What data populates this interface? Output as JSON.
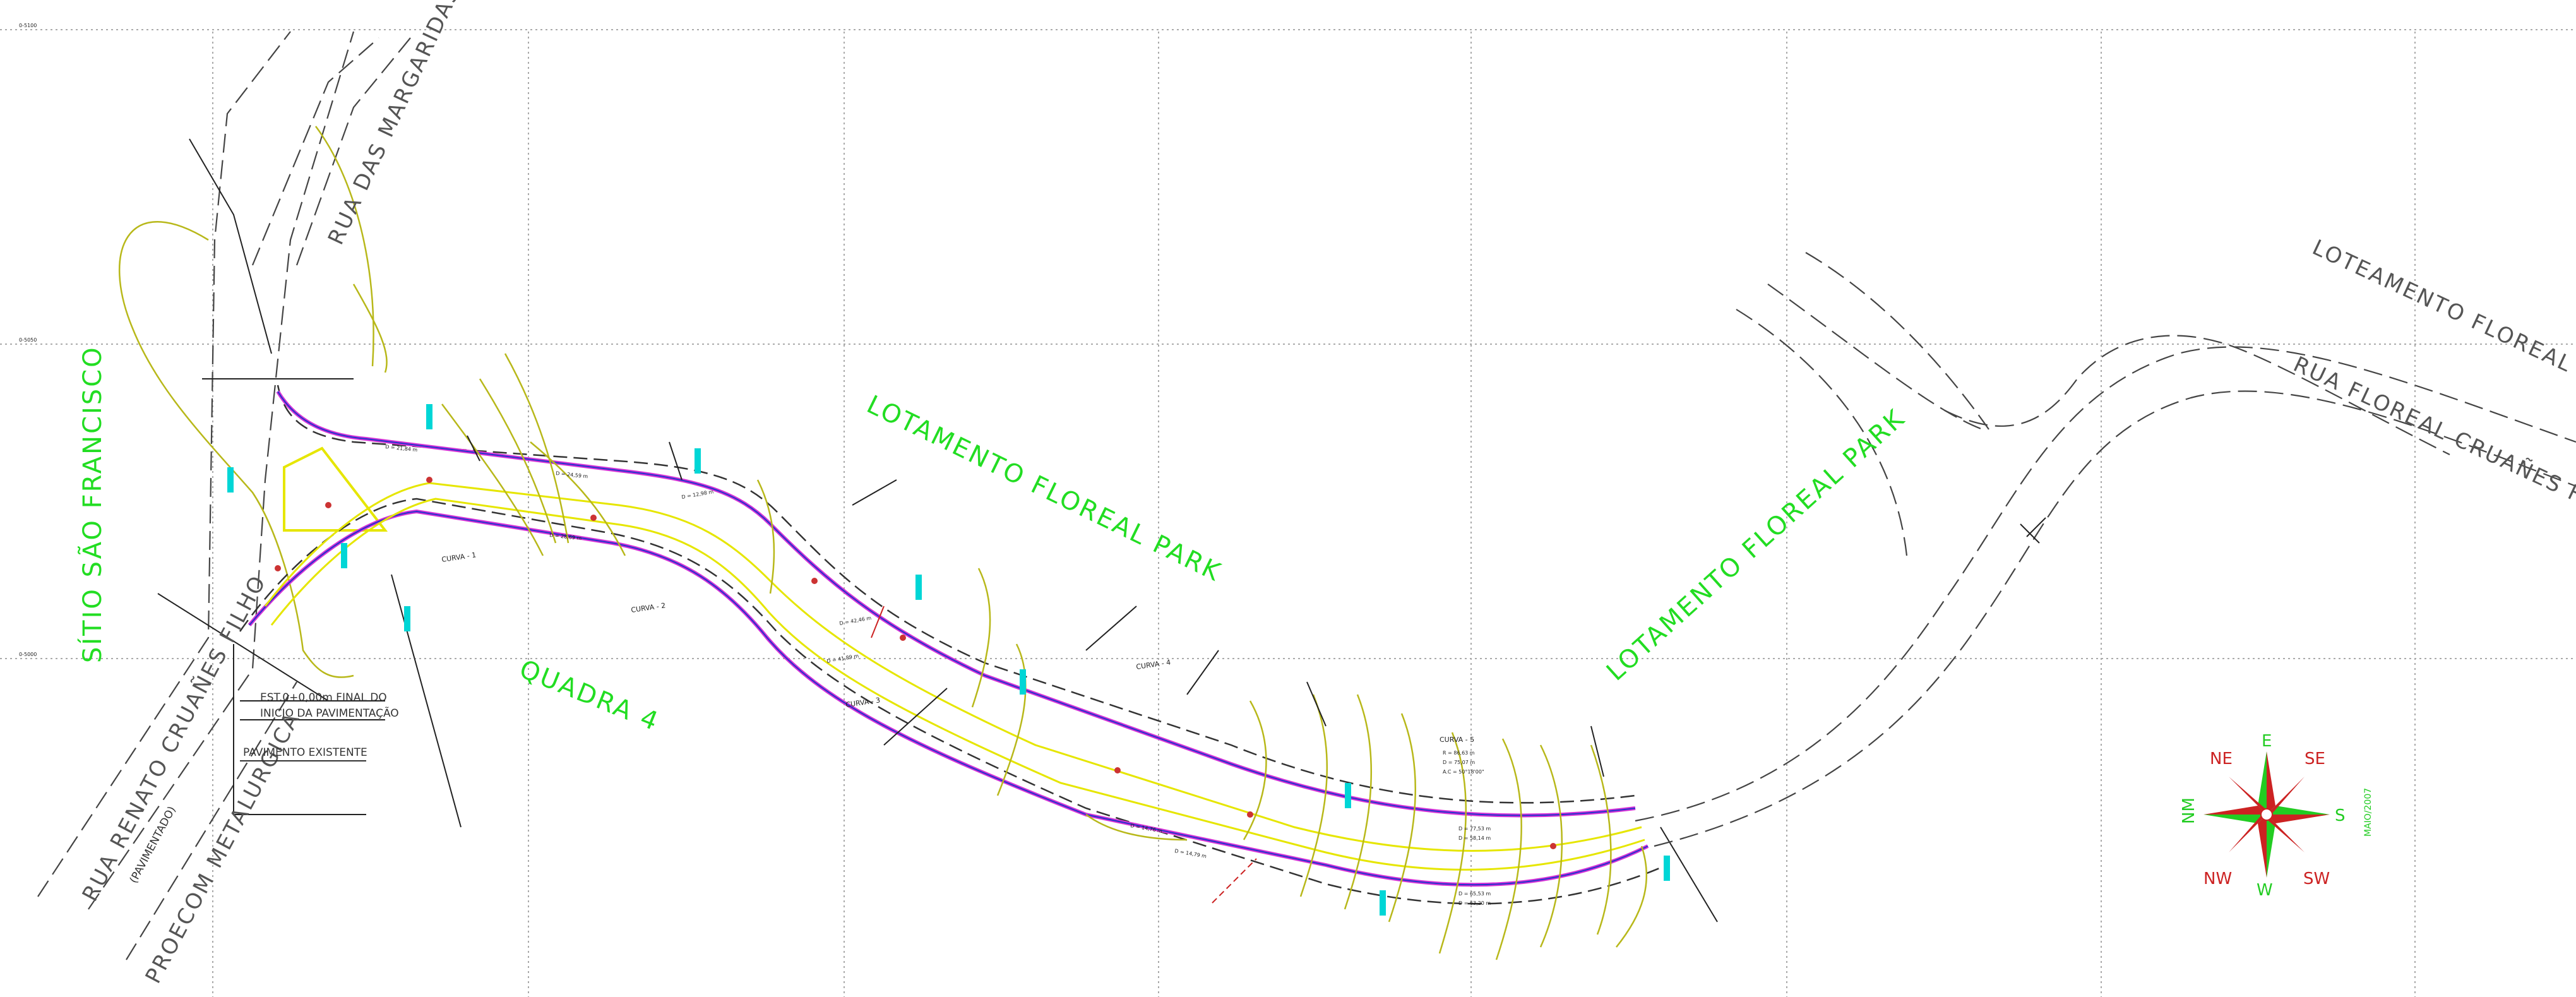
{
  "drawing": {
    "labels": {
      "sitio": "SÍTIO SÃO FRANCISCO",
      "rua_margaridas": "RUA DAS MARGARIDAS",
      "lotamento_floreal_1": "LOTAMENTO FLOREAL PARK",
      "lotamento_floreal_2": "LOTAMENTO FLOREAL PARK",
      "quadra": "QUADRA 4",
      "loteamento_floreal": "LOTEAMENTO FLOREAL PARK",
      "rua_floreal": "RUA FLOREAL CRUAÑES FILHO",
      "rua_renato": "RUA RENATO CRUAÑES FILHO",
      "pavimentado": "(PAVIMENTADO)",
      "proecom": "PROECOM METALURGICA",
      "est_line1": "EST.0+0,00m FINAL DO",
      "est_line2": "INICIO DA PAVIMENTAÇÃO",
      "pavimento": "PAVIMENTO EXISTENTE"
    },
    "curves": {
      "c1": "CURVA - 1",
      "c2": "CURVA - 2",
      "c3": "CURVA - 3",
      "c4": "CURVA - 4",
      "c5": "CURVA - 5",
      "c5_r": "R = 86,63 m",
      "c5_d": "D = 75,07 m",
      "c5_ac": "A.C = 50°18'00\""
    },
    "compass": {
      "E": "E",
      "NE": "NE",
      "SE": "SE",
      "NM": "NM",
      "S": "S",
      "NW": "NW",
      "W": "W",
      "SW": "SW",
      "date": "MAIO/2007"
    },
    "dimensions": {
      "d1": "D = 21,84 m",
      "d2": "D = 24,59 m",
      "d3": "D = 28,69 m",
      "d4": "D = 12,98 m",
      "d5": "D = 42,46 m",
      "d6": "D = 41,89 m",
      "d7": "D = 14,76 m",
      "d8": "D = 14,79 m",
      "d9": "D = 77,53 m",
      "d10": "D = 58,14 m",
      "d11": "D = 65,53 m",
      "d12": "D = 63,20 m"
    },
    "grid": {
      "y_top": "0-5100",
      "y_mid": "0-5050",
      "y_low": "0-5000"
    },
    "colors": {
      "label_green": "#22dd22",
      "road_magenta": "#d633d6",
      "road_blue": "#2233cc",
      "center_yellow": "#e6e600",
      "contour": "#b8b81a",
      "compass_red": "#cc2222",
      "compass_green": "#22cc22"
    }
  }
}
